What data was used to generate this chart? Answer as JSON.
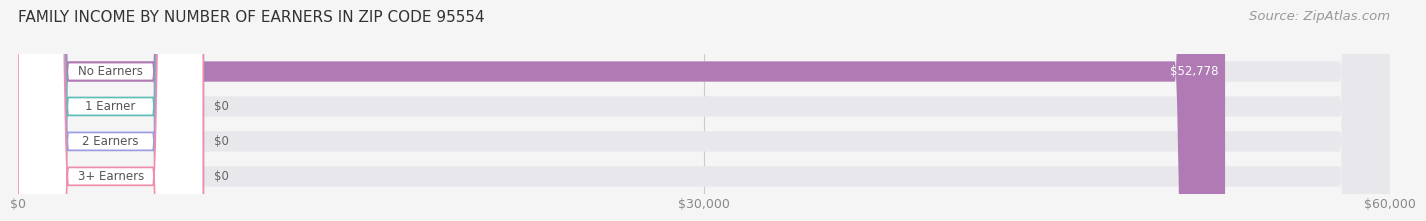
{
  "title": "FAMILY INCOME BY NUMBER OF EARNERS IN ZIP CODE 95554",
  "source": "Source: ZipAtlas.com",
  "categories": [
    "No Earners",
    "1 Earner",
    "2 Earners",
    "3+ Earners"
  ],
  "values": [
    52778,
    0,
    0,
    0
  ],
  "bar_colors": [
    "#b07ab5",
    "#5dbfb8",
    "#9b9de0",
    "#f08faa"
  ],
  "value_labels": [
    "$52,778",
    "$0",
    "$0",
    "$0"
  ],
  "value_label_inside": [
    true,
    false,
    false,
    false
  ],
  "xlim": [
    0,
    60000
  ],
  "xticks": [
    0,
    30000,
    60000
  ],
  "xticklabels": [
    "$0",
    "$30,000",
    "$60,000"
  ],
  "background_color": "#f5f5f5",
  "bar_background": "#e8e8ec",
  "title_fontsize": 11,
  "source_fontsize": 9.5
}
